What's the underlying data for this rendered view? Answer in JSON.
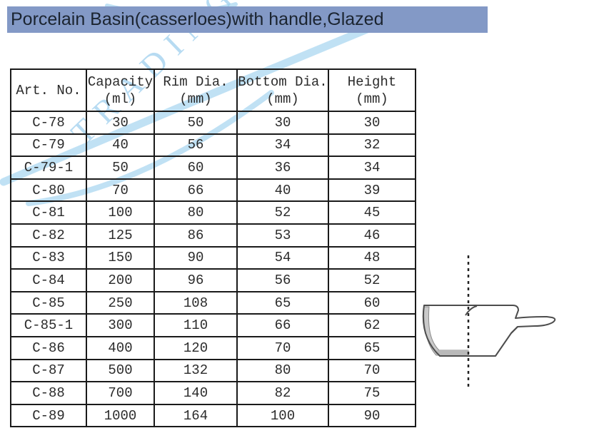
{
  "title": "Porcelain Basin(casserloes)with handle,Glazed",
  "watermark": {
    "text": "TRADING"
  },
  "colors": {
    "title_bar_bg": "#8399c6",
    "title_text": "#1b2430",
    "table_border": "#1a1a1a",
    "watermark_blue": "#8ec9ec",
    "drawing_stroke": "#4d4d4d",
    "wall_shading": "#c9c9c9"
  },
  "table": {
    "headers": [
      {
        "label": "Art. No.",
        "unit": ""
      },
      {
        "label": "Capacity",
        "unit": "(ml)"
      },
      {
        "label": "Rim Dia.",
        "unit": "(mm)"
      },
      {
        "label": "Bottom Dia.",
        "unit": "(mm)"
      },
      {
        "label": "Height",
        "unit": "(mm)"
      }
    ],
    "rows": [
      [
        "C-78",
        "30",
        "50",
        "30",
        "30"
      ],
      [
        "C-79",
        "40",
        "56",
        "34",
        "32"
      ],
      [
        "C-79-1",
        "50",
        "60",
        "36",
        "34"
      ],
      [
        "C-80",
        "70",
        "66",
        "40",
        "39"
      ],
      [
        "C-81",
        "100",
        "80",
        "52",
        "45"
      ],
      [
        "C-82",
        "125",
        "86",
        "53",
        "46"
      ],
      [
        "C-83",
        "150",
        "90",
        "54",
        "48"
      ],
      [
        "C-84",
        "200",
        "96",
        "56",
        "52"
      ],
      [
        "C-85",
        "250",
        "108",
        "65",
        "60"
      ],
      [
        "C-85-1",
        "300",
        "110",
        "66",
        "62"
      ],
      [
        "C-86",
        "400",
        "120",
        "70",
        "65"
      ],
      [
        "C-87",
        "500",
        "132",
        "80",
        "70"
      ],
      [
        "C-88",
        "700",
        "140",
        "82",
        "75"
      ],
      [
        "C-89",
        "1000",
        "164",
        "100",
        "90"
      ]
    ]
  },
  "diagram": {
    "description": "basin-side-section-view"
  }
}
